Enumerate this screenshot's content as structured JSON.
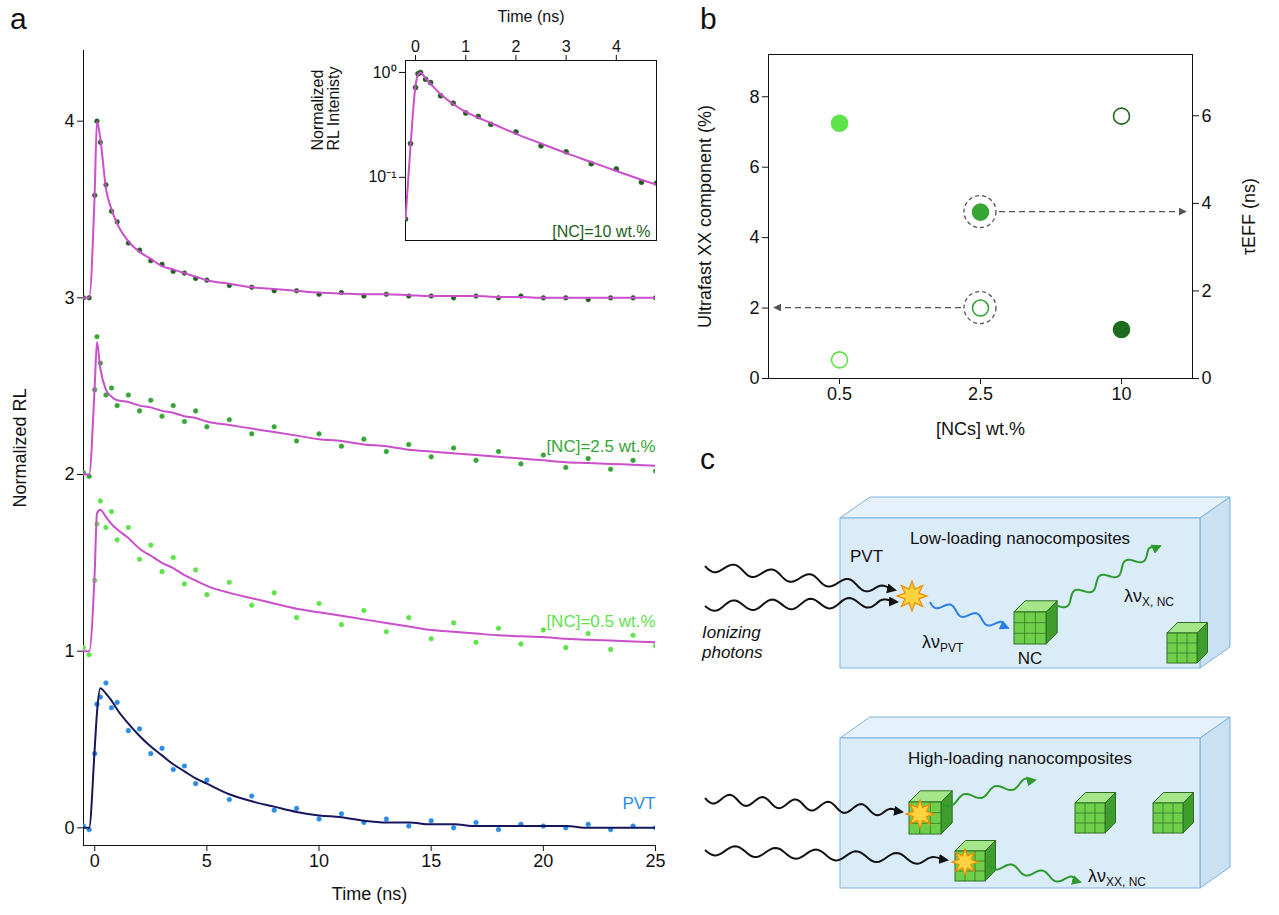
{
  "chart_data": [
    {
      "panel_label": "a",
      "type": "scatter",
      "xlabel": "Time (ns)",
      "ylabel": "Normalized RL",
      "xlim": [
        -0.5,
        25
      ],
      "xticks": [
        0,
        5,
        10,
        15,
        20,
        25
      ],
      "ylim": [
        -0.1,
        4.4
      ],
      "yticks": [
        0,
        1,
        2,
        3,
        4
      ],
      "x": [
        -0.5,
        -0.25,
        0,
        0.1,
        0.25,
        0.5,
        0.75,
        1,
        1.5,
        2,
        2.5,
        3,
        3.5,
        4,
        4.5,
        5,
        6,
        7,
        8,
        9,
        10,
        11,
        12,
        13,
        14,
        15,
        16,
        17,
        18,
        19,
        20,
        21,
        22,
        23,
        24,
        25
      ],
      "series": [
        {
          "name": "PVT",
          "color": "#2b8ce6",
          "marker": "circle",
          "values": [
            0.01,
            -0.01,
            0.42,
            0.7,
            0.74,
            0.82,
            0.68,
            0.71,
            0.55,
            0.56,
            0.42,
            0.45,
            0.33,
            0.35,
            0.25,
            0.27,
            0.16,
            0.18,
            0.1,
            0.11,
            0.05,
            0.08,
            0.03,
            0.05,
            0.01,
            0.04,
            0,
            0.03,
            -0.01,
            0.02,
            0.01,
            0,
            0.02,
            -0.01,
            0.01,
            0
          ]
        },
        {
          "type": "line",
          "color": "#16165c",
          "values": [
            0,
            0,
            0.45,
            0.65,
            0.79,
            0.76,
            0.72,
            0.67,
            0.59,
            0.52,
            0.46,
            0.41,
            0.36,
            0.32,
            0.28,
            0.25,
            0.19,
            0.15,
            0.12,
            0.09,
            0.07,
            0.06,
            0.04,
            0.03,
            0.03,
            0.02,
            0.02,
            0.01,
            0.01,
            0.01,
            0.01,
            0.01,
            0,
            0,
            0,
            0
          ]
        },
        {
          "name": "[NC]=0.5 wt.%",
          "color": "#5fe34a",
          "marker": "circle",
          "values": [
            1.02,
            0.98,
            1.4,
            1.72,
            1.85,
            1.7,
            1.79,
            1.63,
            1.7,
            1.52,
            1.6,
            1.45,
            1.53,
            1.38,
            1.46,
            1.32,
            1.39,
            1.26,
            1.33,
            1.19,
            1.27,
            1.15,
            1.23,
            1.11,
            1.19,
            1.07,
            1.16,
            1.05,
            1.13,
            1.04,
            1.12,
            1.02,
            1.1,
            1.01,
            1.09,
            1.03
          ]
        },
        {
          "type": "line",
          "color": "#c94fcb",
          "values": [
            1,
            1,
            1.45,
            1.78,
            1.8,
            1.76,
            1.72,
            1.69,
            1.64,
            1.58,
            1.54,
            1.5,
            1.47,
            1.43,
            1.4,
            1.37,
            1.33,
            1.3,
            1.27,
            1.24,
            1.22,
            1.2,
            1.18,
            1.16,
            1.14,
            1.12,
            1.11,
            1.1,
            1.09,
            1.085,
            1.08,
            1.07,
            1.065,
            1.06,
            1.055,
            1.05
          ]
        },
        {
          "name": "[NC]=2.5 wt.%",
          "color": "#35a635",
          "marker": "circle",
          "values": [
            2.01,
            1.99,
            2.48,
            2.78,
            2.63,
            2.45,
            2.49,
            2.39,
            2.45,
            2.36,
            2.42,
            2.33,
            2.39,
            2.3,
            2.36,
            2.27,
            2.31,
            2.23,
            2.27,
            2.19,
            2.23,
            2.16,
            2.2,
            2.13,
            2.17,
            2.1,
            2.15,
            2.08,
            2.13,
            2.06,
            2.11,
            2.04,
            2.09,
            2.03,
            2.08,
            2.02
          ]
        },
        {
          "type": "line",
          "color": "#c94fcb",
          "values": [
            2,
            2,
            2.5,
            2.75,
            2.6,
            2.48,
            2.44,
            2.42,
            2.41,
            2.39,
            2.38,
            2.36,
            2.35,
            2.33,
            2.32,
            2.3,
            2.28,
            2.26,
            2.24,
            2.22,
            2.2,
            2.19,
            2.17,
            2.16,
            2.14,
            2.13,
            2.12,
            2.11,
            2.1,
            2.09,
            2.08,
            2.07,
            2.065,
            2.06,
            2.055,
            2.05
          ]
        },
        {
          "color": "#1e5e1e",
          "marker": "circle",
          "values": [
            3,
            3,
            3.58,
            4,
            3.88,
            3.64,
            3.49,
            3.43,
            3.31,
            3.27,
            3.21,
            3.19,
            3.15,
            3.14,
            3.11,
            3.1,
            3.07,
            3.06,
            3.04,
            3.04,
            3.02,
            3.03,
            3.01,
            3.02,
            3.01,
            3.01,
            3,
            3.01,
            3,
            3.01,
            3,
            3,
            2.99,
            3,
            3,
            3
          ]
        },
        {
          "type": "line",
          "color": "#c94fcb",
          "values": [
            3,
            3,
            3.6,
            4,
            3.9,
            3.62,
            3.5,
            3.42,
            3.32,
            3.26,
            3.22,
            3.18,
            3.16,
            3.14,
            3.12,
            3.1,
            3.08,
            3.06,
            3.05,
            3.04,
            3.03,
            3.025,
            3.02,
            3.02,
            3.015,
            3.01,
            3.01,
            3.01,
            3.005,
            3.005,
            3,
            3,
            3,
            3,
            3,
            3
          ]
        }
      ]
    },
    {
      "type": "scatter",
      "log": "y",
      "xlabel": "Time (ns)",
      "ylabel": "Normalized RL Intenisty",
      "xlim": [
        -0.2,
        4.8
      ],
      "xticks": [
        0,
        1,
        2,
        3,
        4
      ],
      "ylim": [
        0.025,
        1.3
      ],
      "yticks": [
        {
          "value": 1,
          "label": "10⁰"
        },
        {
          "value": 0.1,
          "label": "10⁻¹"
        }
      ],
      "x": [
        -0.2,
        -0.1,
        0,
        0.05,
        0.1,
        0.2,
        0.3,
        0.5,
        0.75,
        1,
        1.25,
        1.5,
        2,
        2.5,
        3,
        3.5,
        4,
        4.5,
        4.8
      ],
      "series": [
        {
          "name": "[NC]=10 wt.%",
          "color": "#1e5e1e",
          "marker": "circle",
          "values": [
            0.04,
            0.21,
            0.72,
            0.97,
            1,
            0.86,
            0.8,
            0.6,
            0.51,
            0.41,
            0.38,
            0.32,
            0.27,
            0.2,
            0.175,
            0.135,
            0.12,
            0.09,
            0.088
          ]
        },
        {
          "type": "line",
          "color": "#c94fcb",
          "values": [
            0.04,
            0.2,
            0.75,
            0.95,
            1,
            0.88,
            0.78,
            0.62,
            0.5,
            0.42,
            0.37,
            0.33,
            0.26,
            0.21,
            0.17,
            0.14,
            0.115,
            0.095,
            0.085
          ]
        }
      ]
    },
    {
      "panel_label": "b",
      "type": "scatter",
      "xlabel": "[NCs] wt.%",
      "categories": [
        "0.5",
        "2.5",
        "10"
      ],
      "ylabel": "Ultrafast XX component (%)",
      "ylim": [
        0,
        9.2
      ],
      "yticks": [
        0,
        2,
        4,
        6,
        8
      ],
      "y2label": "τEFF (ns)",
      "y2lim": [
        0,
        7.4
      ],
      "y2ticks": [
        0,
        2,
        4,
        6
      ],
      "series": [
        {
          "marker": "open_circle",
          "colors": [
            "#5fe34a",
            "#35a635",
            "#1e6b1e"
          ],
          "values": [
            0.53,
            2.0,
            7.45
          ]
        },
        {
          "axis": "y2",
          "marker": "circle",
          "colors": [
            "#5fe34a",
            "#35a635",
            "#1e6b1e"
          ],
          "values": [
            5.83,
            3.8,
            1.12
          ]
        }
      ]
    }
  ],
  "diagram": {
    "panel_label": "c",
    "boxes": [
      {
        "title": "Low-loading nanocomposites",
        "matrix_label": "PVT",
        "source_label": "Ionizing photons",
        "nc_label": "NC",
        "matrix_emission": {
          "main": "λν",
          "sub": "PVT"
        },
        "nc_emission": {
          "main": "λν",
          "sub": "X, NC"
        }
      },
      {
        "title": "High-loading nanocomposites",
        "nc_emission": {
          "main": "λν",
          "sub": "XX, NC"
        }
      }
    ]
  }
}
